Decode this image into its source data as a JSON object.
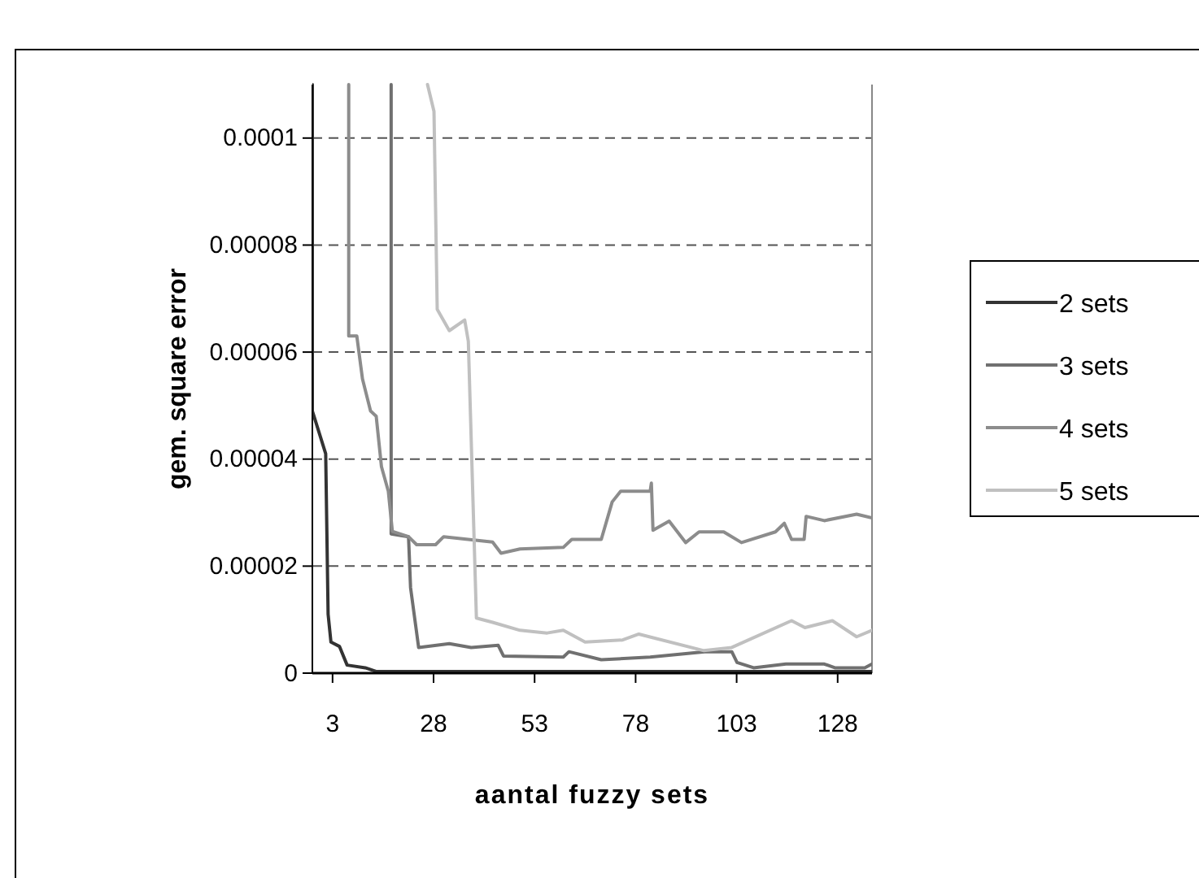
{
  "chart_data": {
    "type": "line",
    "xlabel": "aantal fuzzy sets",
    "ylabel": "gem. square error",
    "xlim": [
      -2,
      136.5
    ],
    "xticks": [
      3,
      28,
      53,
      78,
      103,
      128
    ],
    "ylim": [
      0,
      0.00011
    ],
    "yticks": [
      0,
      {
        "value": 2e-05,
        "label": "0.00002"
      },
      {
        "value": 4e-05,
        "label": "0.00004"
      },
      {
        "value": 6e-05,
        "label": "0.00006"
      },
      {
        "value": 8e-05,
        "label": "0.00008"
      },
      0.0001
    ],
    "grid": "y",
    "legend": "right",
    "marker": "none",
    "line_style": "solid",
    "series": [
      {
        "name": "2 sets",
        "color": "#333333",
        "x": [
          -2,
          -2,
          1.3,
          1.9,
          2.6,
          4.7,
          6.6,
          11.1,
          13.9,
          136.5
        ],
        "values": [
          0.00011,
          4.9e-05,
          4.1e-05,
          1.1e-05,
          5.8e-06,
          5e-06,
          1.5e-06,
          1e-06,
          3e-07,
          3e-07
        ]
      },
      {
        "name": "3 sets",
        "color": "#707070",
        "x": [
          17.5,
          17.5,
          21.8,
          22.3,
          24.3,
          31.9,
          37.3,
          44,
          45.3,
          60.1,
          61.5,
          69.5,
          81.6,
          95.1,
          101.8,
          103.1,
          107.2,
          115.2,
          124.7,
          127.3,
          134.7,
          136.5
        ],
        "values": [
          0.00011,
          2.6e-05,
          2.55e-05,
          1.6e-05,
          4.8e-06,
          5.5e-06,
          4.8e-06,
          5.2e-06,
          3.2e-06,
          3e-06,
          4e-06,
          2.5e-06,
          3e-06,
          4e-06,
          4e-06,
          2e-06,
          1e-06,
          1.7e-06,
          1.7e-06,
          1e-06,
          1e-06,
          1.7e-06
        ]
      },
      {
        "name": "4 sets",
        "color": "#8c8c8c",
        "x": [
          7,
          7,
          9,
          10.4,
          12.4,
          13.8,
          15.1,
          16.8,
          17.8,
          21.8,
          23.8,
          28.5,
          30.5,
          42.6,
          44.7,
          49.4,
          60.1,
          62.2,
          69.5,
          72.2,
          74.3,
          81.6,
          81.9,
          82.3,
          86.3,
          90.4,
          93.7,
          99.8,
          104.2,
          112.6,
          114.8,
          116.6,
          119.7,
          120.2,
          124.7,
          132.7,
          136.5
        ],
        "values": [
          0.00011,
          6.3e-05,
          6.3e-05,
          5.5e-05,
          4.9e-05,
          4.8e-05,
          3.86e-05,
          3.4e-05,
          2.65e-05,
          2.55e-05,
          2.4e-05,
          2.4e-05,
          2.55e-05,
          2.45e-05,
          2.24e-05,
          2.32e-05,
          2.35e-05,
          2.5e-05,
          2.5e-05,
          3.2e-05,
          3.4e-05,
          3.4e-05,
          3.55e-05,
          2.67e-05,
          2.84e-05,
          2.44e-05,
          2.64e-05,
          2.64e-05,
          2.44e-05,
          2.64e-05,
          2.8e-05,
          2.5e-05,
          2.5e-05,
          2.93e-05,
          2.85e-05,
          2.97e-05,
          2.9e-05
        ]
      },
      {
        "name": "5 sets",
        "color": "#c0c0c0",
        "x": [
          26.5,
          28.1,
          28.9,
          31.9,
          35.7,
          36.6,
          38.6,
          42.6,
          49.4,
          56.1,
          60.1,
          65.5,
          74.8,
          78.8,
          94.9,
          101.8,
          116.6,
          119.9,
          126.7,
          132.7,
          136.5
        ],
        "values": [
          0.00011,
          0.000105,
          6.8e-05,
          6.4e-05,
          6.6e-05,
          6.2e-05,
          1.03e-05,
          9.5e-06,
          8e-06,
          7.5e-06,
          8e-06,
          5.8e-06,
          6.2e-06,
          7.3e-06,
          4.2e-06,
          4.8e-06,
          9.8e-06,
          8.5e-06,
          9.8e-06,
          6.8e-06,
          8e-06
        ]
      }
    ]
  }
}
